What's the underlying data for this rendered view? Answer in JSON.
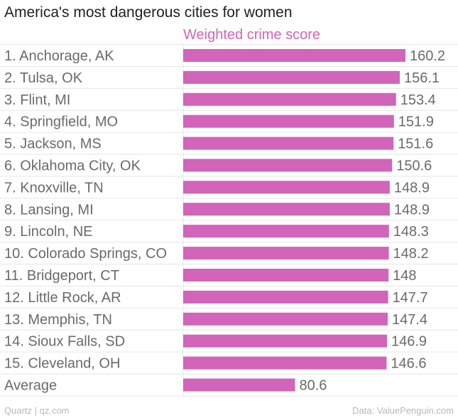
{
  "title": "America's most dangerous cities for women",
  "footer": {
    "source_left": "Quartz | qz.com",
    "source_right": "Data: ValuePenguin.com"
  },
  "colors": {
    "bar": "#d264b9",
    "series_label": "#d264b9",
    "grid": "#e6e6e6",
    "category_text": "#6a6a6a",
    "value_text": "#6a6a6a"
  },
  "chart_data": {
    "type": "bar",
    "orientation": "horizontal",
    "title": "America's most dangerous cities for women",
    "series": [
      {
        "name": "Weighted crime score",
        "values": [
          160.2,
          156.1,
          153.4,
          151.9,
          151.6,
          150.6,
          148.9,
          148.9,
          148.3,
          148.2,
          148,
          147.7,
          147.4,
          146.9,
          146.6,
          80.6
        ]
      }
    ],
    "categories": [
      "1. Anchorage, AK",
      "2. Tulsa, OK",
      "3. Flint, MI",
      "4. Springfield, MO",
      "5. Jackson, MS",
      "6. Oklahoma City, OK",
      "7. Knoxville, TN",
      "8. Lansing, MI",
      "9. Lincoln, NE",
      "10. Colorado Springs, CO",
      "11. Bridgeport, CT",
      "12. Little Rock, AR",
      "13. Memphis, TN",
      "14. Sioux Falls, SD",
      "15. Cleveland, OH",
      "Average"
    ],
    "value_labels": [
      "160.2",
      "156.1",
      "153.4",
      "151.9",
      "151.6",
      "150.6",
      "148.9",
      "148.9",
      "148.3",
      "148.2",
      "148",
      "147.7",
      "147.4",
      "146.9",
      "146.6",
      "80.6"
    ],
    "xlim": [
      0,
      160.2
    ],
    "xlabel": "",
    "ylabel": "",
    "grid": true,
    "legend": "top"
  }
}
